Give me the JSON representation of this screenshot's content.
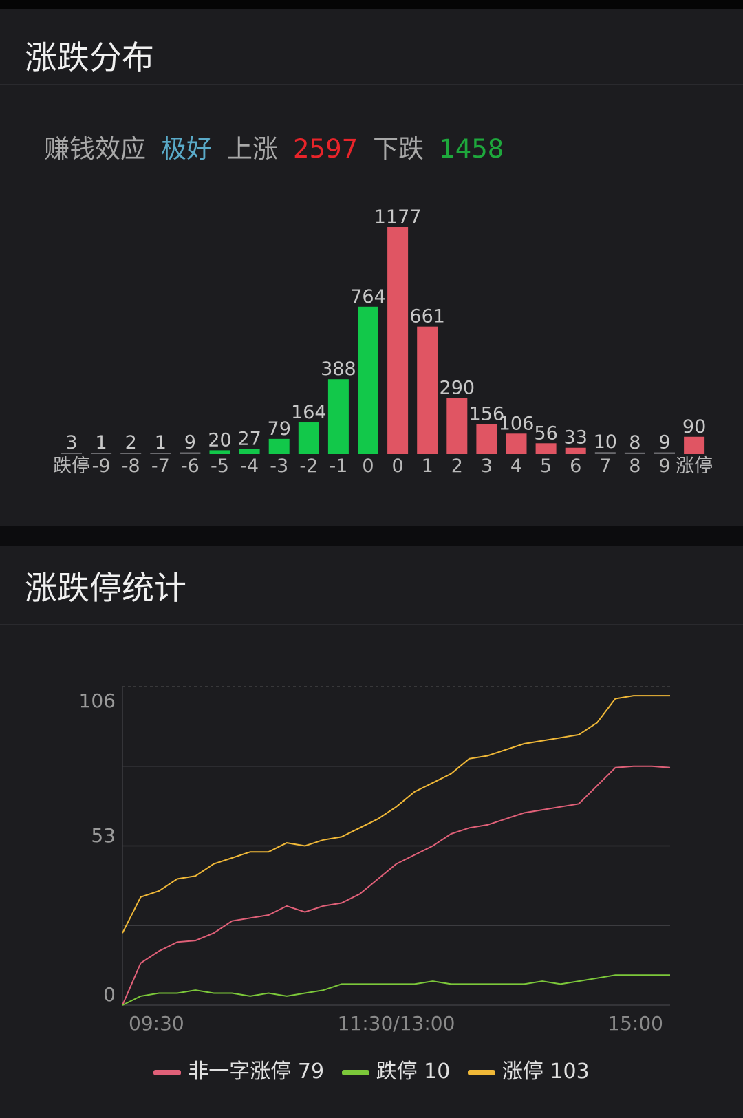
{
  "section1": {
    "title": "涨跌分布",
    "summary": {
      "effect_label": "赚钱效应",
      "effect_value": "极好",
      "up_label": "上涨",
      "up_value": "2597",
      "down_label": "下跌",
      "down_value": "1458"
    }
  },
  "section2": {
    "title": "涨跌停统计"
  },
  "colors": {
    "background": "#1c1c1f",
    "up_bar": "#e05563",
    "down_bar": "#12c84a",
    "effect": "#5aaac8",
    "up_text": "#e8242a",
    "down_text": "#1ea83c",
    "pink_line": "#e06078",
    "green_line": "#7cc83a",
    "yellow_line": "#f0b838"
  },
  "chart_data": [
    {
      "type": "bar",
      "categories": [
        "跌停",
        "-9",
        "-8",
        "-7",
        "-6",
        "-5",
        "-4",
        "-3",
        "-2",
        "-1",
        "0",
        "0",
        "1",
        "2",
        "3",
        "4",
        "5",
        "6",
        "7",
        "8",
        "9",
        "涨停"
      ],
      "values": [
        3,
        1,
        2,
        1,
        9,
        20,
        27,
        79,
        164,
        388,
        764,
        1177,
        661,
        290,
        156,
        106,
        56,
        33,
        10,
        8,
        9,
        90
      ],
      "bar_colors": [
        "down",
        "down",
        "down",
        "down",
        "down",
        "down",
        "down",
        "down",
        "down",
        "down",
        "down",
        "up",
        "up",
        "up",
        "up",
        "up",
        "up",
        "up",
        "up",
        "up",
        "up",
        "up"
      ],
      "data_labels": true
    },
    {
      "type": "line",
      "x_ticks": [
        "09:30",
        "11:30/13:00",
        "15:00"
      ],
      "y_ticks": [
        "0",
        "53",
        "106"
      ],
      "ylim": [
        0,
        106
      ],
      "grid": true,
      "legend_position": "bottom",
      "series": [
        {
          "name": "非一字涨停",
          "legend_value": "79",
          "color": "#e06078",
          "values": [
            0,
            14,
            18,
            21,
            21.5,
            24,
            28,
            29,
            30,
            33,
            31,
            33,
            34,
            37,
            42,
            47,
            50,
            53,
            57,
            59,
            60,
            62,
            64,
            65,
            66,
            67,
            73,
            79,
            79.5,
            79.5,
            79
          ]
        },
        {
          "name": "跌停",
          "legend_value": "10",
          "color": "#7cc83a",
          "values": [
            0,
            3,
            4,
            4,
            5,
            4,
            4,
            3,
            4,
            3,
            4,
            5,
            7,
            7,
            7,
            7,
            7,
            8,
            7,
            7,
            7,
            7,
            7,
            8,
            7,
            8,
            9,
            10,
            10,
            10,
            10
          ]
        },
        {
          "name": "涨停",
          "legend_value": "103",
          "color": "#f0b838",
          "values": [
            24,
            36,
            38,
            42,
            43,
            47,
            49,
            51,
            51,
            54,
            53,
            55,
            56,
            59,
            62,
            66,
            71,
            74,
            77,
            82,
            83,
            85,
            87,
            88,
            89,
            90,
            94,
            102,
            103,
            103,
            103
          ]
        }
      ]
    }
  ]
}
